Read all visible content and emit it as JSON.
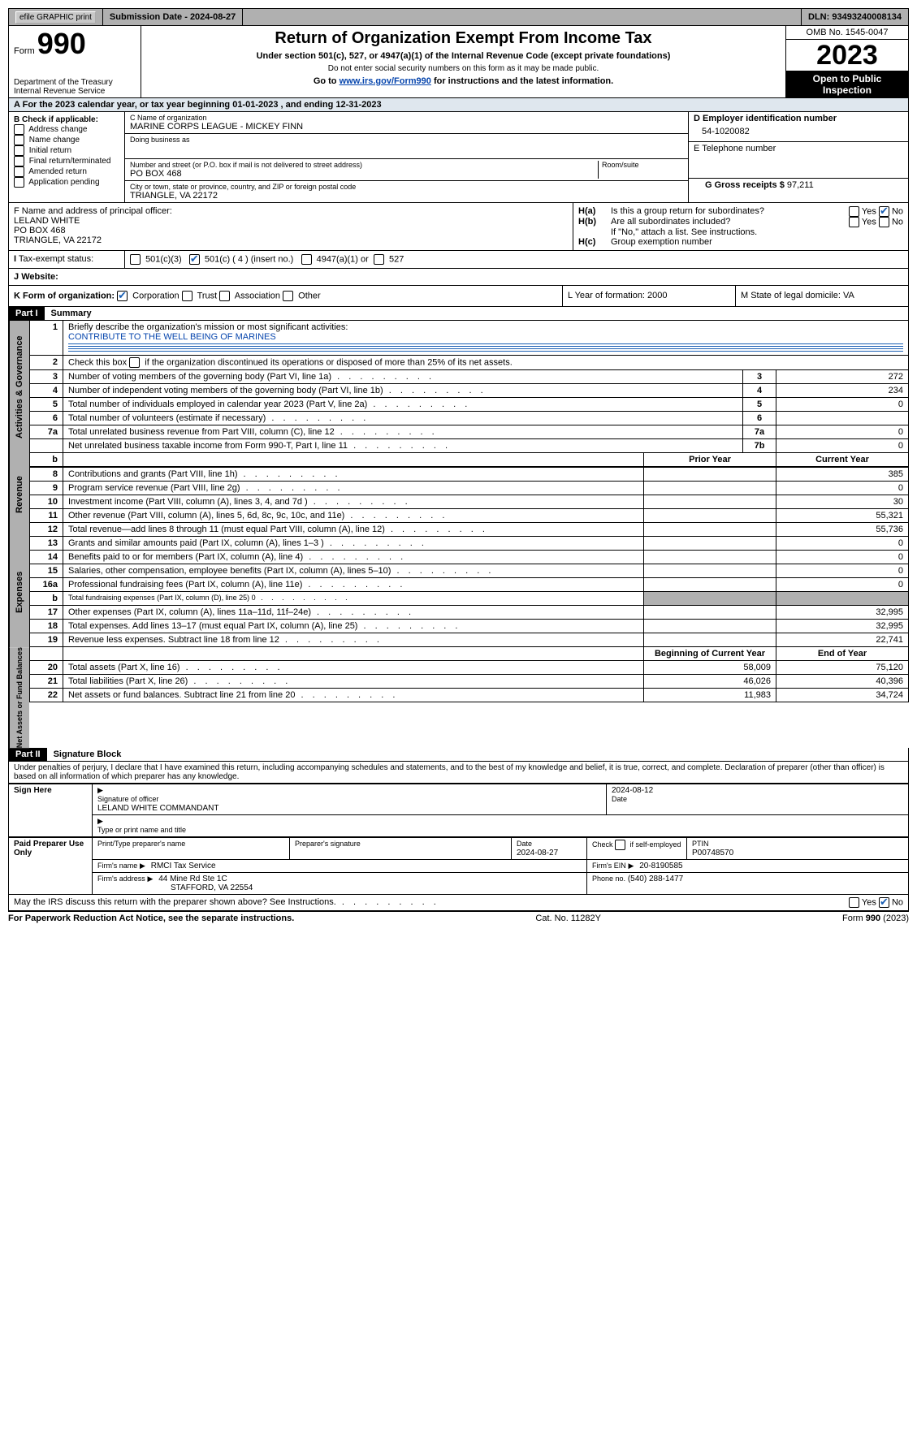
{
  "topbar": {
    "efile": "efile GRAPHIC print",
    "submission_label": "Submission Date - 2024-08-27",
    "dln_label": "DLN: 93493240008134"
  },
  "header": {
    "form_label": "Form",
    "form_number": "990",
    "dept": "Department of the Treasury\nInternal Revenue Service",
    "title": "Return of Organization Exempt From Income Tax",
    "subtitle": "Under section 501(c), 527, or 4947(a)(1) of the Internal Revenue Code (except private foundations)",
    "note1": "Do not enter social security numbers on this form as it may be made public.",
    "note2_pre": "Go to ",
    "note2_link": "www.irs.gov/Form990",
    "note2_post": " for instructions and the latest information.",
    "omb": "OMB No. 1545-0047",
    "year": "2023",
    "public": "Open to Public Inspection"
  },
  "line_a": "For the 2023 calendar year, or tax year beginning 01-01-2023   , and ending 12-31-2023",
  "box_b": {
    "title": "B Check if applicable:",
    "items": [
      "Address change",
      "Name change",
      "Initial return",
      "Final return/terminated",
      "Amended return",
      "Application pending"
    ]
  },
  "box_c": {
    "name_label": "C Name of organization",
    "name": "MARINE CORPS LEAGUE - MICKEY FINN",
    "dba_label": "Doing business as",
    "street_label": "Number and street (or P.O. box if mail is not delivered to street address)",
    "street": "PO BOX 468",
    "room_label": "Room/suite",
    "city_label": "City or town, state or province, country, and ZIP or foreign postal code",
    "city": "TRIANGLE, VA  22172"
  },
  "box_d": {
    "label": "D Employer identification number",
    "value": "54-1020082"
  },
  "box_e": {
    "label": "E Telephone number",
    "value": ""
  },
  "box_g": {
    "label": "G Gross receipts $",
    "value": "97,211"
  },
  "box_f": {
    "label": "F  Name and address of principal officer:",
    "lines": [
      "LELAND WHITE",
      "PO BOX 468",
      "TRIANGLE, VA  22172"
    ]
  },
  "box_h": {
    "a_label": "Is this a group return for subordinates?",
    "b_label": "Are all subordinates included?",
    "b_note": "If \"No,\" attach a list. See instructions.",
    "c_label": "Group exemption number"
  },
  "box_i": {
    "label": "Tax-exempt status:",
    "c3": "501(c)(3)",
    "c_other": "501(c) ( 4 ) (insert no.)",
    "a4947": "4947(a)(1) or",
    "s527": "527"
  },
  "box_j": {
    "label": "Website:"
  },
  "box_k": {
    "label": "K Form of organization:",
    "opts": [
      "Corporation",
      "Trust",
      "Association",
      "Other"
    ]
  },
  "box_l": {
    "label": "L Year of formation: 2000"
  },
  "box_m": {
    "label": "M State of legal domicile: VA"
  },
  "parts": {
    "p1": "Part I",
    "p1_title": "Summary",
    "p2": "Part II",
    "p2_title": "Signature Block"
  },
  "summary": {
    "l1_label": "Briefly describe the organization's mission or most significant activities:",
    "l1_text": "CONTRIBUTE TO THE WELL BEING OF MARINES",
    "l2": "Check this box      if the organization discontinued its operations or disposed of more than 25% of its net assets.",
    "rows_gov": [
      {
        "n": "3",
        "t": "Number of voting members of the governing body (Part VI, line 1a)",
        "box": "3",
        "v": "272"
      },
      {
        "n": "4",
        "t": "Number of independent voting members of the governing body (Part VI, line 1b)",
        "box": "4",
        "v": "234"
      },
      {
        "n": "5",
        "t": "Total number of individuals employed in calendar year 2023 (Part V, line 2a)",
        "box": "5",
        "v": "0"
      },
      {
        "n": "6",
        "t": "Total number of volunteers (estimate if necessary)",
        "box": "6",
        "v": ""
      },
      {
        "n": "7a",
        "t": "Total unrelated business revenue from Part VIII, column (C), line 12",
        "box": "7a",
        "v": "0"
      },
      {
        "n": "",
        "t": "Net unrelated business taxable income from Form 990-T, Part I, line 11",
        "box": "7b",
        "v": "0"
      }
    ],
    "col_hdr": {
      "b": "b",
      "prior": "Prior Year",
      "current": "Current Year"
    },
    "rows_rev": [
      {
        "n": "8",
        "t": "Contributions and grants (Part VIII, line 1h)",
        "p": "",
        "c": "385"
      },
      {
        "n": "9",
        "t": "Program service revenue (Part VIII, line 2g)",
        "p": "",
        "c": "0"
      },
      {
        "n": "10",
        "t": "Investment income (Part VIII, column (A), lines 3, 4, and 7d )",
        "p": "",
        "c": "30"
      },
      {
        "n": "11",
        "t": "Other revenue (Part VIII, column (A), lines 5, 6d, 8c, 9c, 10c, and 11e)",
        "p": "",
        "c": "55,321"
      },
      {
        "n": "12",
        "t": "Total revenue—add lines 8 through 11 (must equal Part VIII, column (A), line 12)",
        "p": "",
        "c": "55,736"
      }
    ],
    "rows_exp": [
      {
        "n": "13",
        "t": "Grants and similar amounts paid (Part IX, column (A), lines 1–3 )",
        "p": "",
        "c": "0"
      },
      {
        "n": "14",
        "t": "Benefits paid to or for members (Part IX, column (A), line 4)",
        "p": "",
        "c": "0"
      },
      {
        "n": "15",
        "t": "Salaries, other compensation, employee benefits (Part IX, column (A), lines 5–10)",
        "p": "",
        "c": "0"
      },
      {
        "n": "16a",
        "t": "Professional fundraising fees (Part IX, column (A), line 11e)",
        "p": "",
        "c": "0"
      },
      {
        "n": "b",
        "t": "Total fundraising expenses (Part IX, column (D), line 25) 0",
        "p": "shade",
        "c": "shade"
      },
      {
        "n": "17",
        "t": "Other expenses (Part IX, column (A), lines 11a–11d, 11f–24e)",
        "p": "",
        "c": "32,995"
      },
      {
        "n": "18",
        "t": "Total expenses. Add lines 13–17 (must equal Part IX, column (A), line 25)",
        "p": "",
        "c": "32,995"
      },
      {
        "n": "19",
        "t": "Revenue less expenses. Subtract line 18 from line 12",
        "p": "",
        "c": "22,741"
      }
    ],
    "col_hdr2": {
      "begin": "Beginning of Current Year",
      "end": "End of Year"
    },
    "rows_net": [
      {
        "n": "20",
        "t": "Total assets (Part X, line 16)",
        "p": "58,009",
        "c": "75,120"
      },
      {
        "n": "21",
        "t": "Total liabilities (Part X, line 26)",
        "p": "46,026",
        "c": "40,396"
      },
      {
        "n": "22",
        "t": "Net assets or fund balances. Subtract line 21 from line 20",
        "p": "11,983",
        "c": "34,724"
      }
    ]
  },
  "vtabs": {
    "gov": "Activities & Governance",
    "rev": "Revenue",
    "exp": "Expenses",
    "net": "Net Assets or Fund Balances"
  },
  "sigblock": {
    "perjury": "Under penalties of perjury, I declare that I have examined this return, including accompanying schedules and statements, and to the best of my knowledge and belief, it is true, correct, and complete. Declaration of preparer (other than officer) is based on all information of which preparer has any knowledge.",
    "sign_here": "Sign Here",
    "sig_officer_label": "Signature of officer",
    "sig_date": "2024-08-12",
    "date_label": "Date",
    "officer_name": "LELAND WHITE COMMANDANT",
    "type_label": "Type or print name and title",
    "paid": "Paid Preparer Use Only",
    "prep_name_label": "Print/Type preparer's name",
    "prep_sig_label": "Preparer's signature",
    "prep_date_label": "Date",
    "prep_date": "2024-08-27",
    "check_self": "Check       if self-employed",
    "ptin_label": "PTIN",
    "ptin": "P00748570",
    "firm_name_label": "Firm's name",
    "firm_name": "RMCI Tax Service",
    "firm_ein_label": "Firm's EIN",
    "firm_ein": "20-8190585",
    "firm_addr_label": "Firm's address",
    "firm_addr1": "44 Mine Rd Ste 1C",
    "firm_addr2": "STAFFORD, VA  22554",
    "phone_label": "Phone no.",
    "phone": "(540) 288-1477",
    "may_irs": "May the IRS discuss this return with the preparer shown above? See Instructions."
  },
  "footer": {
    "paperwork": "For Paperwork Reduction Act Notice, see the separate instructions.",
    "catno": "Cat. No. 11282Y",
    "formid": "Form 990 (2023)"
  }
}
